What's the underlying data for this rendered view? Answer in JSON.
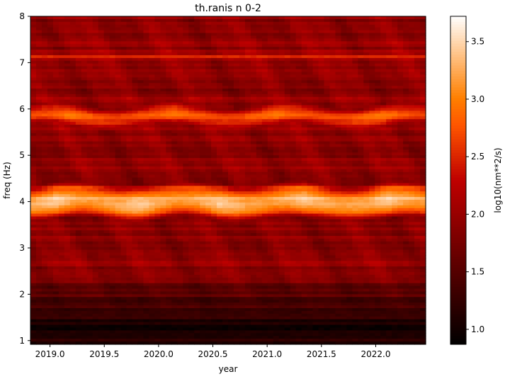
{
  "chart_data": {
    "type": "heatmap",
    "title": "th.ranis n 0-2",
    "xlabel": "year",
    "ylabel": "freq (Hz)",
    "xlim": [
      2018.82,
      2022.46
    ],
    "ylim": [
      0.92,
      8.0
    ],
    "x_ticks": [
      2019.0,
      2019.5,
      2020.0,
      2020.5,
      2021.0,
      2021.5,
      2022.0
    ],
    "x_tick_labels": [
      "2019.0",
      "2019.5",
      "2020.0",
      "2020.5",
      "2021.0",
      "2021.5",
      "2022.0"
    ],
    "y_ticks": [
      1,
      2,
      3,
      4,
      5,
      6,
      7,
      8
    ],
    "y_tick_labels": [
      "1",
      "2",
      "3",
      "4",
      "5",
      "6",
      "7",
      "8"
    ],
    "colormap": "gist_heat",
    "colorbar": {
      "label": "log10(nm**2/s)",
      "range": [
        0.87,
        3.72
      ],
      "ticks": [
        1.0,
        1.5,
        2.0,
        2.5,
        3.0,
        3.5
      ],
      "tick_labels": [
        "1.0",
        "1.5",
        "2.0",
        "2.5",
        "3.0",
        "3.5"
      ]
    },
    "features": {
      "background_level": 1.95,
      "low_freq_minimum": {
        "freq_range": [
          1.0,
          2.0
        ],
        "level": 1.1
      },
      "bands": [
        {
          "name": "4 Hz band",
          "center_freq": 4.0,
          "peak_level": 3.5
        },
        {
          "name": "5.85 Hz band",
          "center_freq": 5.85,
          "peak_level": 2.85
        },
        {
          "name": "7.15 Hz line",
          "center_freq": 7.15,
          "peak_level": 2.9
        }
      ]
    }
  }
}
